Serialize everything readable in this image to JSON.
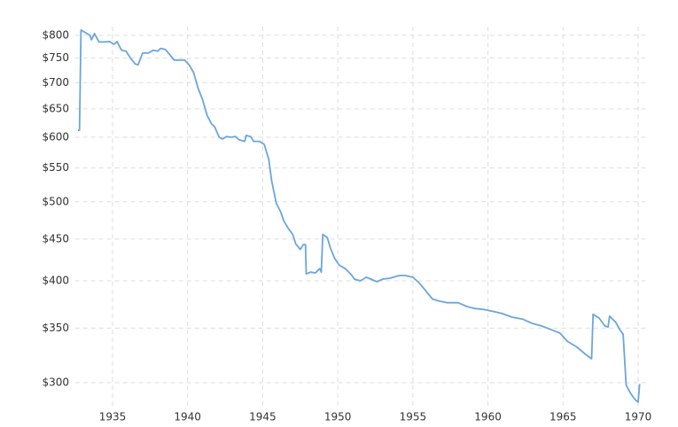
{
  "chart_data": {
    "type": "line",
    "color": "#6ba6dc",
    "log_y": true,
    "grid": true,
    "x": [
      1932.7,
      1932.8,
      1932.9,
      1933.2,
      1933.5,
      1933.6,
      1933.8,
      1934.1,
      1934.4,
      1934.8,
      1935.1,
      1935.3,
      1935.6,
      1935.9,
      1936.2,
      1936.5,
      1936.7,
      1937.0,
      1937.4,
      1937.7,
      1938.0,
      1938.2,
      1938.5,
      1938.8,
      1939.1,
      1939.5,
      1939.8,
      1940.1,
      1940.4,
      1940.7,
      1941.0,
      1941.3,
      1941.6,
      1941.8,
      1942.1,
      1942.3,
      1942.6,
      1942.9,
      1943.2,
      1943.4,
      1943.8,
      1943.9,
      1944.2,
      1944.4,
      1944.8,
      1945.1,
      1945.4,
      1945.6,
      1945.9,
      1946.2,
      1946.4,
      1946.7,
      1947.0,
      1947.2,
      1947.5,
      1947.7,
      1947.85,
      1947.9,
      1948.2,
      1948.5,
      1948.8,
      1948.9,
      1949.0,
      1949.3,
      1949.5,
      1949.8,
      1950.1,
      1950.5,
      1950.9,
      1951.1,
      1951.5,
      1951.9,
      1952.2,
      1952.6,
      1953.0,
      1953.5,
      1954.1,
      1954.5,
      1955.0,
      1955.4,
      1955.8,
      1956.3,
      1956.7,
      1957.3,
      1958.0,
      1958.6,
      1959.1,
      1959.7,
      1960.3,
      1960.9,
      1961.6,
      1962.3,
      1962.9,
      1963.6,
      1964.3,
      1964.8,
      1965.3,
      1965.9,
      1966.5,
      1966.9,
      1967.0,
      1967.4,
      1967.8,
      1968.0,
      1968.1,
      1968.5,
      1968.8,
      1969.0,
      1969.2,
      1969.5,
      1969.8,
      1970.0,
      1970.1
    ],
    "values": [
      612,
      612,
      812,
      806,
      800,
      790,
      804,
      785,
      785,
      786,
      780,
      786,
      767,
      765,
      750,
      738,
      736,
      761,
      761,
      767,
      765,
      771,
      769,
      758,
      746,
      746,
      746,
      736,
      720,
      689,
      667,
      638,
      623,
      618,
      600,
      597,
      601,
      600,
      601,
      596,
      593,
      603,
      601,
      593,
      593,
      588,
      564,
      530,
      498,
      486,
      474,
      464,
      456,
      444,
      437,
      443,
      443,
      408,
      410,
      409,
      414,
      410,
      456,
      452,
      439,
      426,
      418,
      414,
      407,
      402,
      400,
      404,
      402,
      399,
      402,
      403,
      406,
      406,
      404,
      398,
      390,
      380,
      378,
      376,
      376,
      372,
      370,
      369,
      367,
      365,
      361,
      359,
      355,
      352,
      348,
      345,
      337,
      332,
      325,
      321,
      364,
      360,
      352,
      351,
      362,
      356,
      348,
      344,
      298,
      291,
      286,
      284,
      299
    ],
    "xlim": [
      1932.5,
      1970.5
    ],
    "xticks": [
      1935,
      1940,
      1945,
      1950,
      1955,
      1960,
      1965,
      1970
    ],
    "ylim": [
      280,
      820
    ],
    "yticks": [
      {
        "value": 300,
        "label": "$300"
      },
      {
        "value": 350,
        "label": "$350"
      },
      {
        "value": 400,
        "label": "$400"
      },
      {
        "value": 450,
        "label": "$450"
      },
      {
        "value": 500,
        "label": "$500"
      },
      {
        "value": 550,
        "label": "$550"
      },
      {
        "value": 600,
        "label": "$600"
      },
      {
        "value": 650,
        "label": "$650"
      },
      {
        "value": 700,
        "label": "$700"
      },
      {
        "value": 750,
        "label": "$750"
      },
      {
        "value": 800,
        "label": "$800"
      }
    ]
  }
}
